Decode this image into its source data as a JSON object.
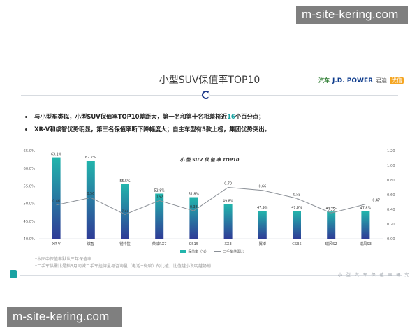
{
  "watermarks": {
    "top": "m-site-kering.com",
    "bottom": "m-site-kering.com"
  },
  "slide": {
    "title": "小型SUV保值率TOP10",
    "brands": [
      "汽车",
      "J.D. POWER",
      "君迪",
      "优信"
    ]
  },
  "bullets": [
    {
      "pre": "与小型车类似，小型SUV保值率TOP10差距大，第一名和第十名相差将近",
      "hl": "16",
      "post": "个百分点；"
    },
    {
      "pre": "XR-V和缤智优势明显，第三名保值率断下降幅度大；自主车型有5款上榜，集团优势突出。",
      "hl": "",
      "post": ""
    }
  ],
  "notes": [
    "*本图中保值率默认三年保值率",
    "*二手车供需比是指5月同城二手车挂牌量与咨询量（电话+微聊）的比值，比值越小说明越畅销"
  ],
  "footer_right": "小 型 汽 车 保 值 率 研 究",
  "colors": {
    "bar_top": "#22b5ac",
    "bar_bottom": "#2f3c97",
    "line": "#8a8f96"
  },
  "chart_data": {
    "type": "bar",
    "title": "小 型 SUV 保 值 率 TOP10",
    "categories": [
      "XR-V",
      "缤智",
      "锐特拉",
      "荣威RX7",
      "CS15",
      "XX3",
      "翼博",
      "CS35",
      "瑞风S2",
      "瑞风S3"
    ],
    "series": [
      {
        "name": "保值率（%）",
        "values": [
          63.1,
          62.2,
          55.5,
          52.8,
          51.8,
          49.8,
          47.9,
          47.9,
          47.7,
          47.8
        ],
        "labels": [
          "63.1%",
          "62.2%",
          "55.5%",
          "52.8%",
          "51.8%",
          "49.8%",
          "47.9%",
          "47.9%",
          "47.7%",
          "47.8%"
        ],
        "axis": "left"
      },
      {
        "name": "二手车供需比",
        "values": [
          0.46,
          0.56,
          0.33,
          0.52,
          0.38,
          0.7,
          0.66,
          0.55,
          0.35,
          0.47
        ],
        "labels": [
          "0.46",
          "0.56",
          "0.33",
          "0.52",
          "0.38",
          "0.70",
          "0.66",
          "0.55",
          "0.35",
          "0.47"
        ],
        "axis": "right"
      }
    ],
    "ylim": [
      40,
      65
    ],
    "yticks": [
      "40.0%",
      "45.0%",
      "50.0%",
      "55.0%",
      "60.0%",
      "65.0%"
    ],
    "y2lim": [
      0,
      1.2
    ],
    "y2ticks": [
      "0.00",
      "0.20",
      "0.40",
      "0.60",
      "0.80",
      "1.00",
      "1.20"
    ],
    "legend": "bottom"
  }
}
